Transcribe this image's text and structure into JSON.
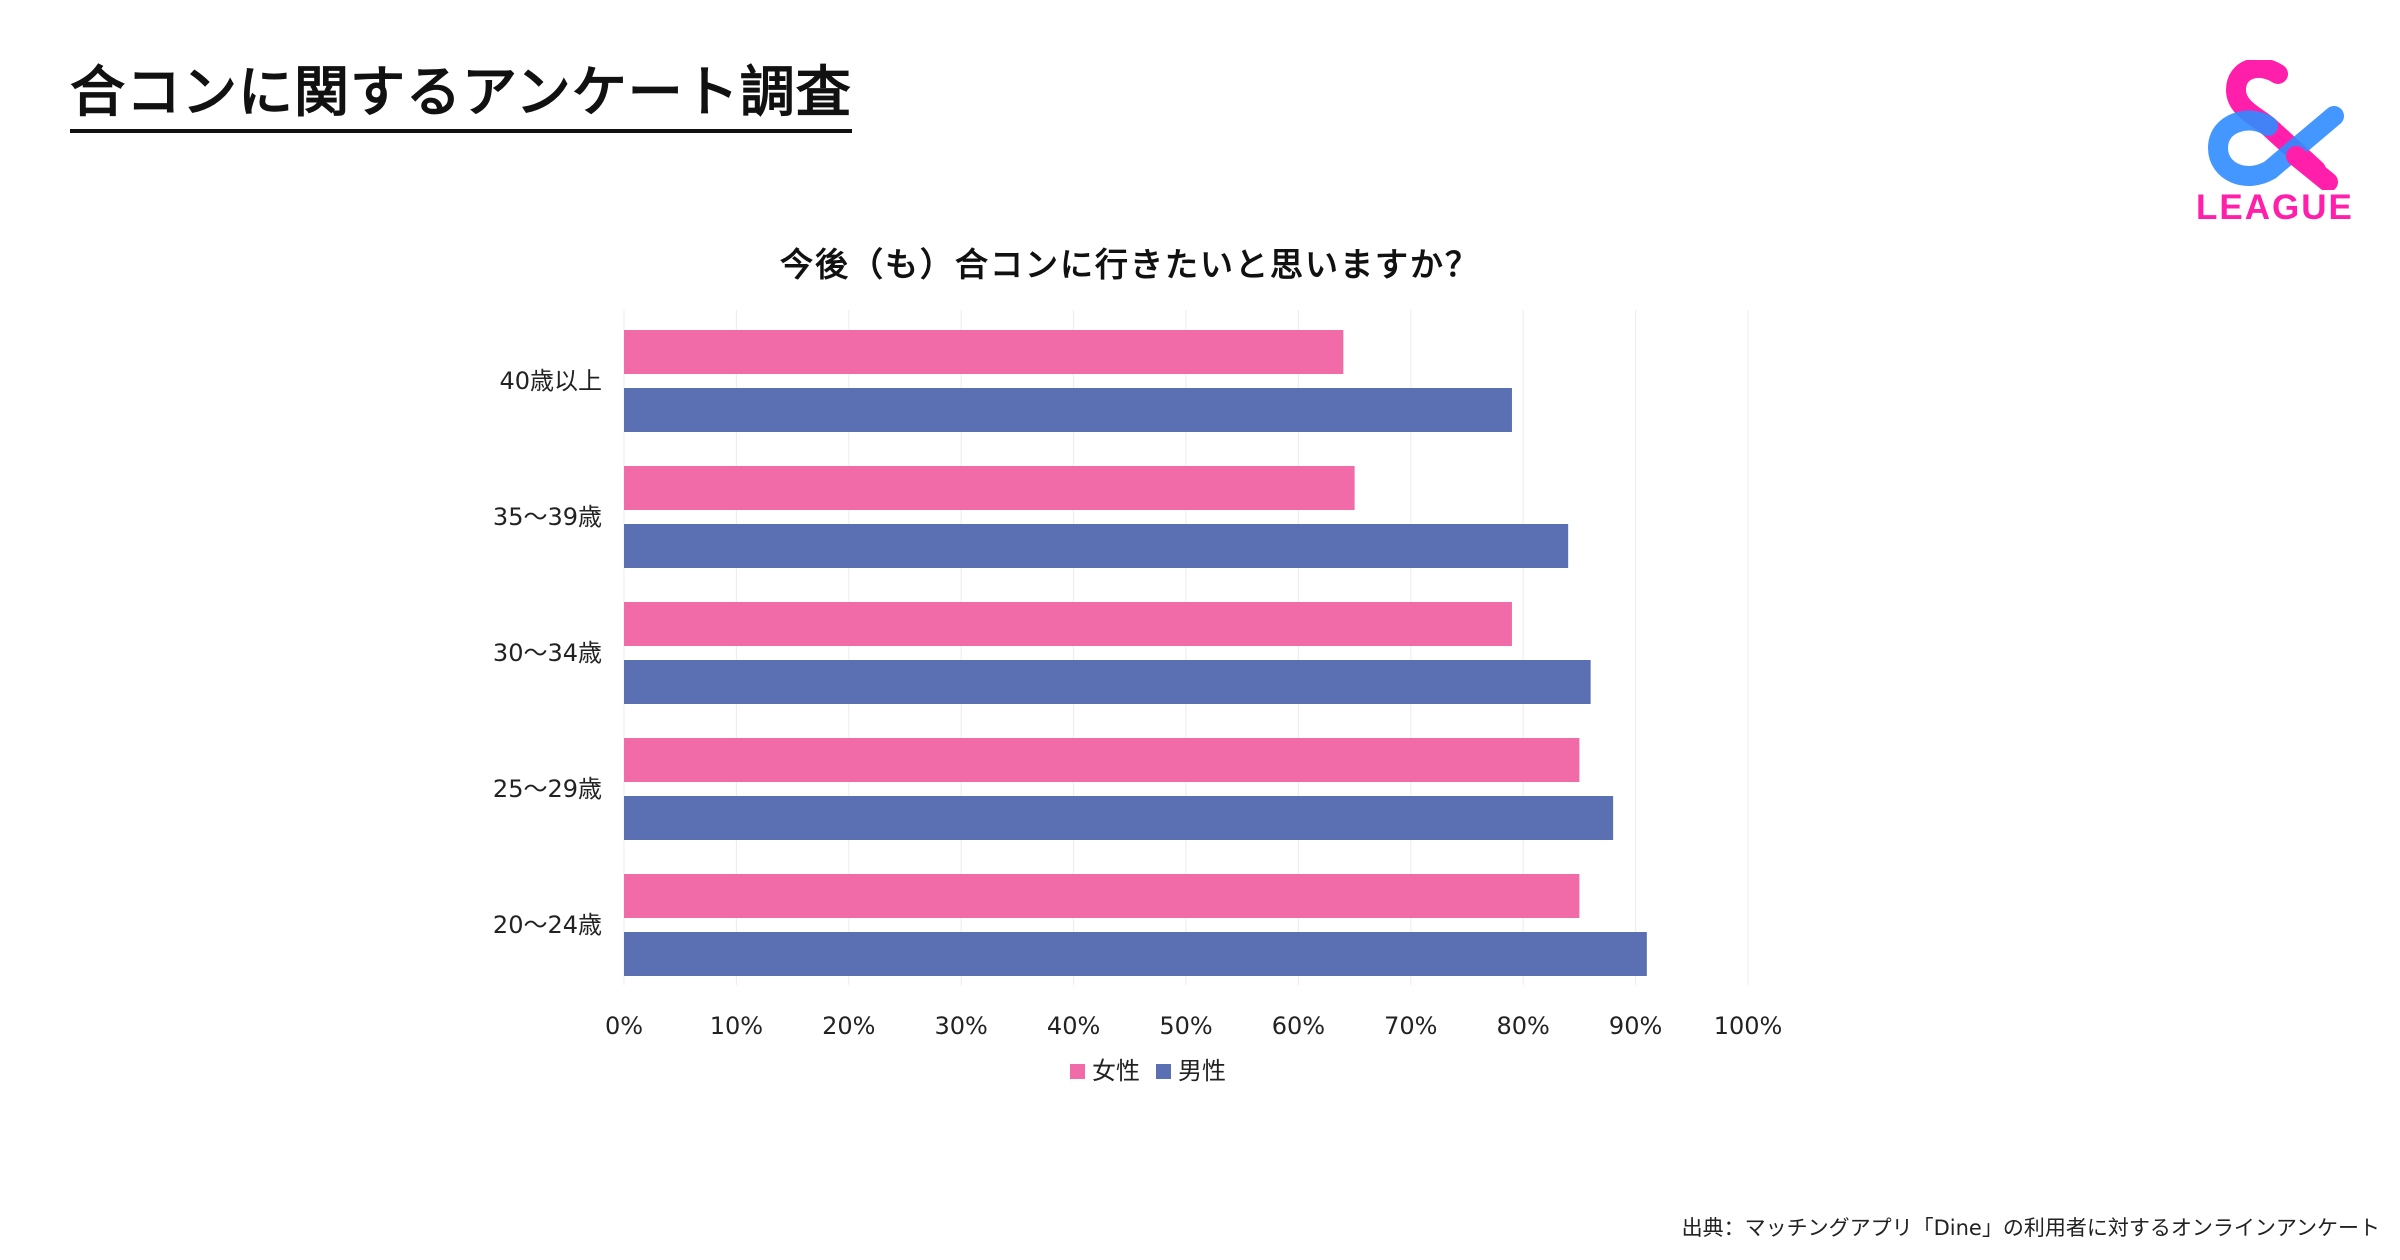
{
  "page": {
    "title": "合コンに関するアンケート調査",
    "source": "出典：マッチングアプリ「Dine」の利用者に対するオンラインアンケート"
  },
  "logo": {
    "symbol": "&",
    "text": "LEAGUE",
    "colors": [
      "#ff1faa",
      "#2f8cff"
    ]
  },
  "chart_data": {
    "type": "bar",
    "orientation": "horizontal",
    "title": "今後（も）合コンに行きたいと思いますか？",
    "categories": [
      "40歳以上",
      "35〜39歳",
      "30〜34歳",
      "25〜29歳",
      "20〜24歳"
    ],
    "series": [
      {
        "name": "女性",
        "color": "#f06ba8",
        "values": [
          64,
          65,
          79,
          85,
          85
        ]
      },
      {
        "name": "男性",
        "color": "#5b70b2",
        "values": [
          79,
          84,
          86,
          88,
          91
        ]
      }
    ],
    "xlim": [
      0,
      100
    ],
    "xticks": [
      "0%",
      "10%",
      "20%",
      "30%",
      "40%",
      "50%",
      "60%",
      "70%",
      "80%",
      "90%",
      "100%"
    ],
    "grid": true,
    "legend": "bottom-center",
    "xlabel": "",
    "ylabel": ""
  }
}
